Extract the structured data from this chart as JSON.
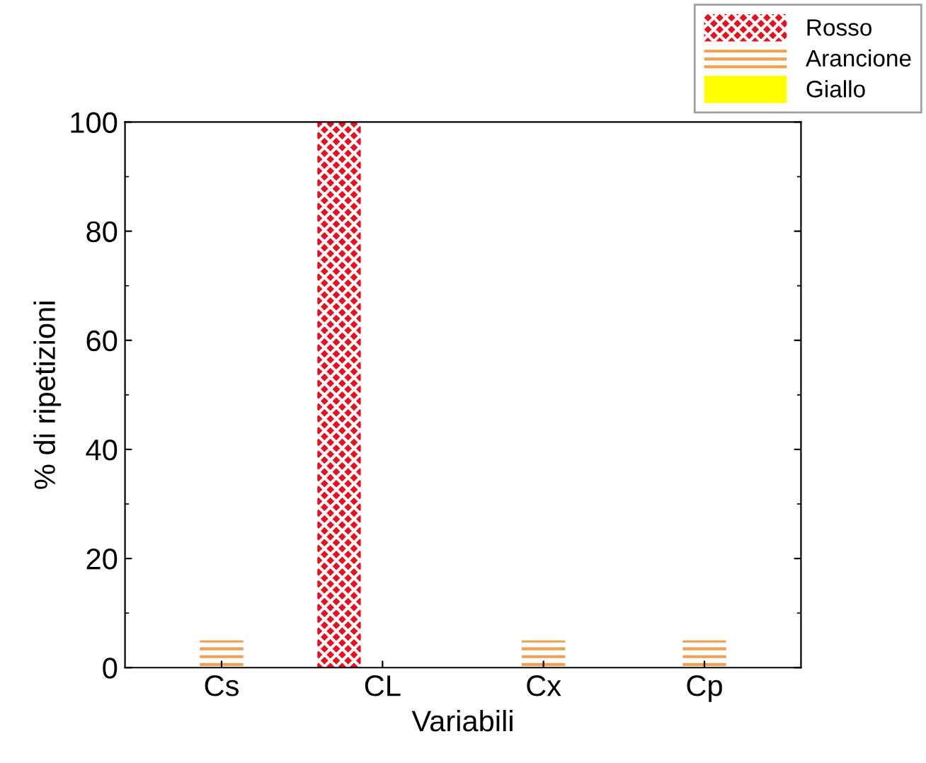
{
  "chart_data": {
    "type": "bar",
    "xlabel": "Variabili",
    "ylabel": "% di ripetizioni",
    "categories": [
      "Cs",
      "CL",
      "Cx",
      "Cp"
    ],
    "series": [
      {
        "name": "Rosso",
        "color": "#e8101e",
        "values": [
          0,
          100,
          0,
          0
        ]
      },
      {
        "name": "Arancione",
        "color": "#f0a050",
        "values": [
          5,
          0,
          5,
          5
        ]
      },
      {
        "name": "Giallo",
        "color": "#ffff00",
        "values": [
          0,
          0,
          0,
          0
        ]
      }
    ],
    "ylim": [
      0,
      100
    ],
    "yticks": [
      0,
      20,
      40,
      60,
      80,
      100
    ],
    "grid": false,
    "legend": "top right"
  }
}
